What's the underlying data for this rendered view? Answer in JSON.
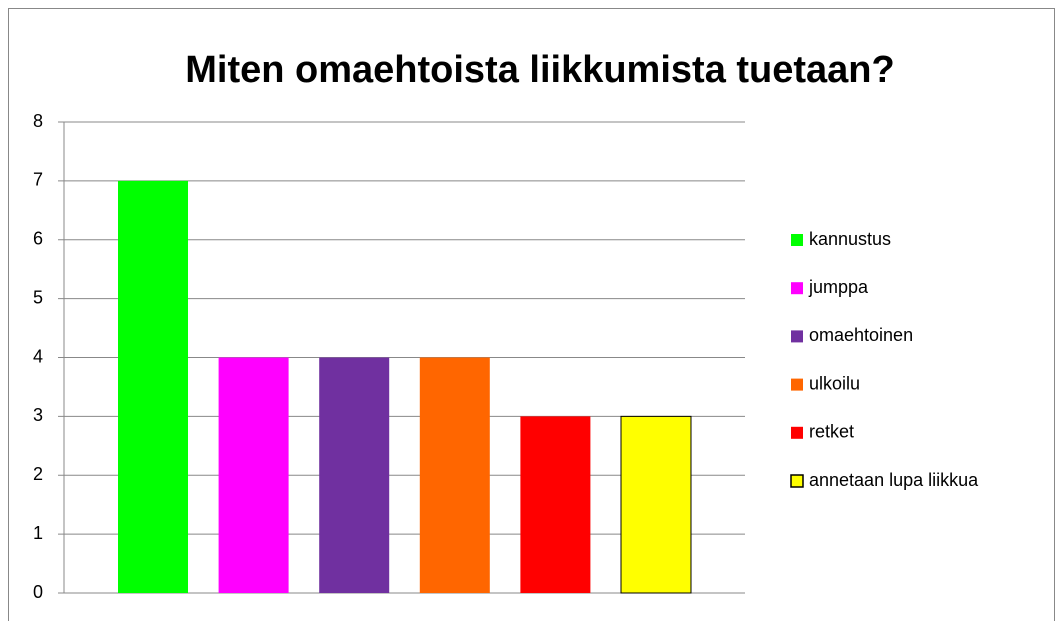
{
  "chart_data": {
    "type": "bar",
    "title": "Miten omaehtoista liikkumista tuetaan?",
    "series": [
      {
        "name": "kannustus",
        "color": "#00ff00",
        "values": [
          7
        ]
      },
      {
        "name": "jumppa",
        "color": "#ff00ff",
        "values": [
          4
        ]
      },
      {
        "name": "omaehtoinen",
        "color": "#7030a0",
        "values": [
          4
        ]
      },
      {
        "name": "ulkoilu",
        "color": "#ff6600",
        "values": [
          4
        ]
      },
      {
        "name": "retket",
        "color": "#ff0000",
        "values": [
          3
        ]
      },
      {
        "name": "annetaan lupa liikkua",
        "color": "#ffff00",
        "border": "#000000",
        "values": [
          3
        ]
      }
    ],
    "ylim": [
      0,
      8
    ],
    "yticks": [
      0,
      1,
      2,
      3,
      4,
      5,
      6,
      7,
      8
    ],
    "grid": true,
    "legend": "right"
  }
}
